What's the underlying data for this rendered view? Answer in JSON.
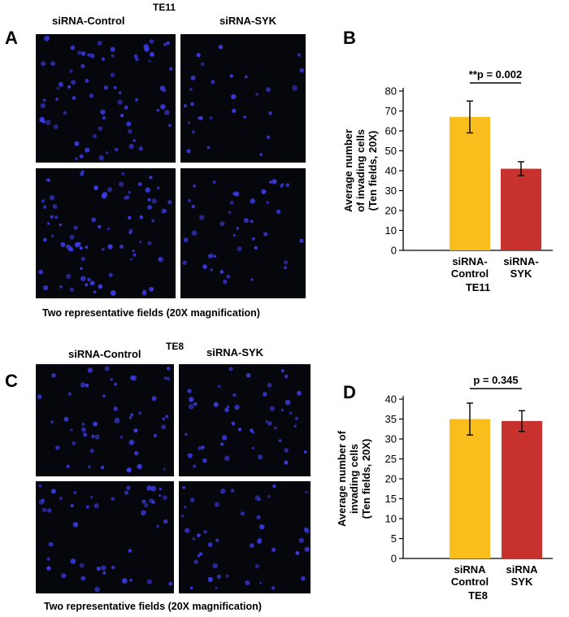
{
  "panels": {
    "A": {
      "letter": "A",
      "cell_line": "TE11",
      "conditions": [
        "siRNA-Control",
        "siRNA-SYK"
      ],
      "caption": "Two representative fields (20X magnification)"
    },
    "B": {
      "letter": "B"
    },
    "C": {
      "letter": "C",
      "cell_line": "TE8",
      "conditions": [
        "siRNA-Control",
        "siRNA-SYK"
      ],
      "caption": "Two representative fields (20X magnification)"
    },
    "D": {
      "letter": "D"
    }
  },
  "colors": {
    "control": "#F9BE1B",
    "syk": "#C7322F",
    "nucleus": "#3A3AE0",
    "micro_bg": "#06060d"
  },
  "chart_data": [
    {
      "id": "B",
      "type": "bar",
      "categories": [
        [
          "siRNA-",
          "Control"
        ],
        [
          "siRNA-",
          "SYK"
        ]
      ],
      "values": [
        67,
        41
      ],
      "errors": [
        8,
        3.5
      ],
      "ylabel": [
        "Average number",
        "of invading cells",
        "(Ten fields, 20X)"
      ],
      "xlabel": "TE11",
      "ylim": [
        0,
        80
      ],
      "yticks": [
        0,
        10,
        20,
        30,
        40,
        50,
        60,
        70,
        80
      ],
      "annotation": "**p = 0.002",
      "grid": false
    },
    {
      "id": "D",
      "type": "bar",
      "categories": [
        [
          "siRNA",
          "Control"
        ],
        [
          "siRNA",
          "SYK"
        ]
      ],
      "values": [
        35,
        34.5
      ],
      "errors": [
        4,
        2.6
      ],
      "ylabel": [
        "Average number of",
        "invading cells",
        "(Ten fields, 20X)"
      ],
      "xlabel": "TE8",
      "ylim": [
        0,
        40
      ],
      "yticks": [
        0,
        5,
        10,
        15,
        20,
        25,
        30,
        35,
        40
      ],
      "annotation": "p = 0.345",
      "grid": false
    }
  ]
}
